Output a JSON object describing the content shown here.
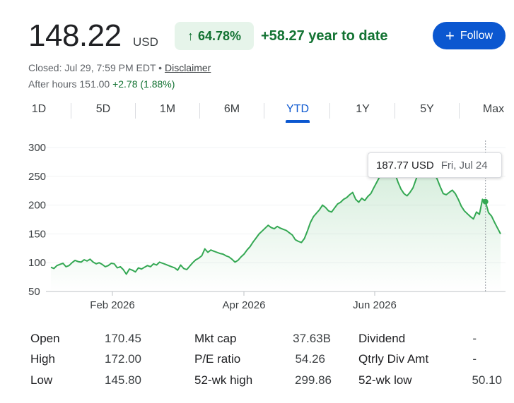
{
  "quote": {
    "price": "148.22",
    "currency": "USD",
    "change_pct": "64.78%",
    "ytd_change": "+58.27 year to date",
    "follow_label": "Follow",
    "closed_text": "Closed: Jul 29, 7:59 PM EDT",
    "separator": "•",
    "disclaimer": "Disclaimer",
    "after_hours_label": "After hours 151.00",
    "after_hours_change": "+2.78 (1.88%)"
  },
  "tabs": [
    {
      "label": "1D"
    },
    {
      "label": "5D"
    },
    {
      "label": "1M"
    },
    {
      "label": "6M"
    },
    {
      "label": "YTD",
      "active": true
    },
    {
      "label": "1Y"
    },
    {
      "label": "5Y"
    },
    {
      "label": "Max"
    }
  ],
  "tooltip": {
    "price": "187.77 USD",
    "date": "Fri, Jul 24"
  },
  "colors": {
    "up": "#137333",
    "line": "#34a853",
    "accent": "#0b57d0"
  },
  "chart_data": {
    "type": "area",
    "x_tick_labels": [
      "Feb 2026",
      "Apr 2026",
      "Jun 2026"
    ],
    "y_tick_labels": [
      "300",
      "250",
      "200",
      "150",
      "100",
      "50"
    ],
    "ylim": [
      50,
      300
    ],
    "grid": true,
    "series": [
      {
        "values": [
          92,
          90,
          95,
          97,
          99,
          93,
          95,
          100,
          104,
          102,
          101,
          105,
          103,
          106,
          101,
          98,
          100,
          97,
          93,
          95,
          99,
          98,
          91,
          93,
          88,
          80,
          89,
          87,
          84,
          91,
          89,
          92,
          95,
          93,
          98,
          96,
          101,
          99,
          97,
          95,
          93,
          91,
          87,
          96,
          90,
          88,
          94,
          100,
          105,
          108,
          112,
          124,
          118,
          122,
          120,
          118,
          116,
          115,
          112,
          110,
          106,
          101,
          104,
          110,
          115,
          122,
          128,
          136,
          143,
          150,
          155,
          160,
          165,
          161,
          159,
          163,
          160,
          158,
          156,
          152,
          148,
          140,
          137,
          135,
          142,
          155,
          170,
          180,
          186,
          192,
          200,
          196,
          190,
          188,
          195,
          202,
          205,
          210,
          213,
          218,
          222,
          210,
          205,
          212,
          208,
          215,
          220,
          230,
          240,
          250,
          262,
          270,
          273,
          268,
          255,
          240,
          228,
          220,
          216,
          222,
          230,
          245,
          260,
          275,
          280,
          275,
          268,
          255,
          245,
          232,
          220,
          218,
          222,
          226,
          220,
          210,
          198,
          190,
          185,
          180,
          176,
          188,
          184,
          210,
          206,
          187,
          181,
          170,
          160,
          150
        ]
      }
    ]
  },
  "stats": {
    "col1": [
      {
        "label": "Open",
        "value": "170.45"
      },
      {
        "label": "High",
        "value": "172.00"
      },
      {
        "label": "Low",
        "value": "145.80"
      }
    ],
    "col2": [
      {
        "label": "Mkt cap",
        "value": "37.63B"
      },
      {
        "label": "P/E ratio",
        "value": "54.26"
      },
      {
        "label": "52-wk high",
        "value": "299.86"
      }
    ],
    "col3": [
      {
        "label": "Dividend",
        "value": "-"
      },
      {
        "label": "Qtrly Div Amt",
        "value": "-"
      },
      {
        "label": "52-wk low",
        "value": "50.10"
      }
    ]
  }
}
